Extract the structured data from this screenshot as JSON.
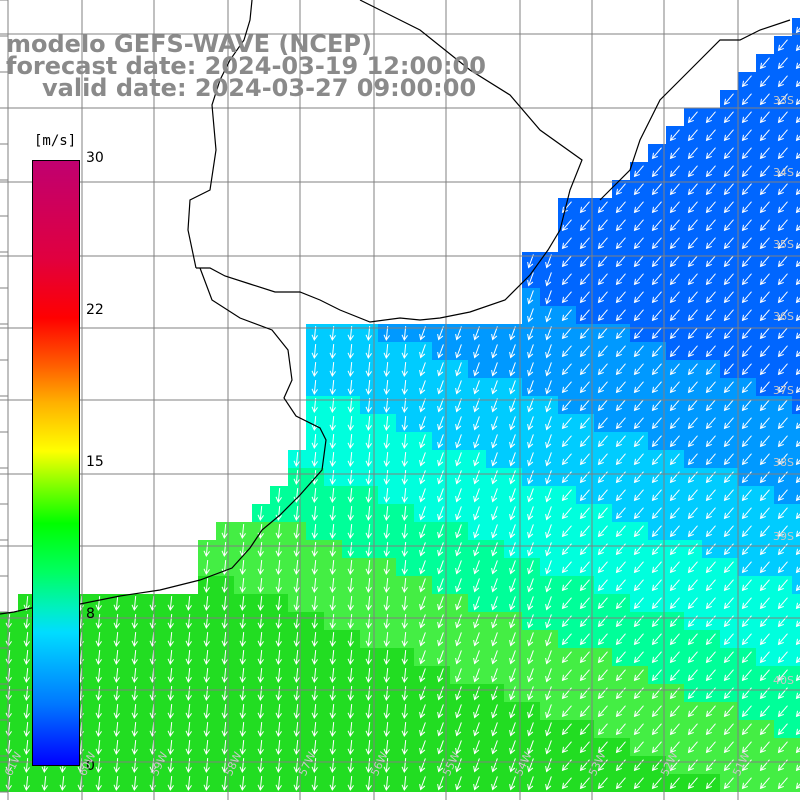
{
  "titles": {
    "model": "modelo GEFS-WAVE (NCEP)",
    "forecast": "forecast date: 2024-03-19 12:00:00",
    "valid": "valid date: 2024-03-27 09:00:00"
  },
  "colorbar": {
    "unit": "[m/s]",
    "ticks": [
      "30",
      "22",
      "15",
      "8",
      "0"
    ],
    "tick_values": [
      30,
      22,
      15,
      8,
      0
    ],
    "colors": [
      "#0000ff",
      "#00ddff",
      "#00ff00",
      "#ffff00",
      "#ff0000",
      "#c00070"
    ]
  },
  "axes": {
    "lat_labels": [
      "33S",
      "34S",
      "35S",
      "36S",
      "37S",
      "38S",
      "39S",
      "40S"
    ],
    "lon_labels": [
      "61W",
      "60W",
      "59W",
      "58W",
      "57W",
      "56W",
      "55W",
      "54W",
      "53W",
      "52W",
      "51W"
    ]
  },
  "colors": {
    "land": "#ffffff",
    "coast": "#000000",
    "grid": "#808080",
    "arrows": "#ffffff"
  }
}
